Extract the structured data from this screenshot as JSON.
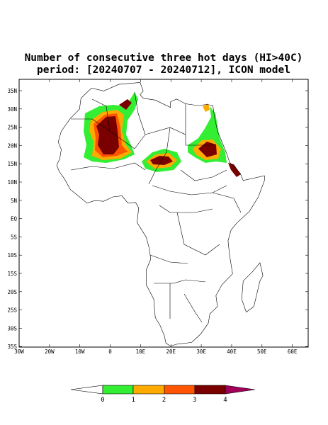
{
  "title": {
    "line1": "Number of consecutive three hot days (HI>40C)",
    "line2": "period: [20240707 - 20240712], ICON model"
  },
  "axes": {
    "lon_labels": [
      "30W",
      "20W",
      "10W",
      "0",
      "10E",
      "20E",
      "30E",
      "40E",
      "50E",
      "60E"
    ],
    "lat_labels": [
      "35N",
      "30N",
      "25N",
      "20N",
      "15N",
      "10N",
      "5N",
      "EQ",
      "5S",
      "10S",
      "15S",
      "20S",
      "25S",
      "30S",
      "35S"
    ]
  },
  "colorbar": {
    "labels": [
      "0",
      "1",
      "2",
      "3",
      "4"
    ]
  }
}
